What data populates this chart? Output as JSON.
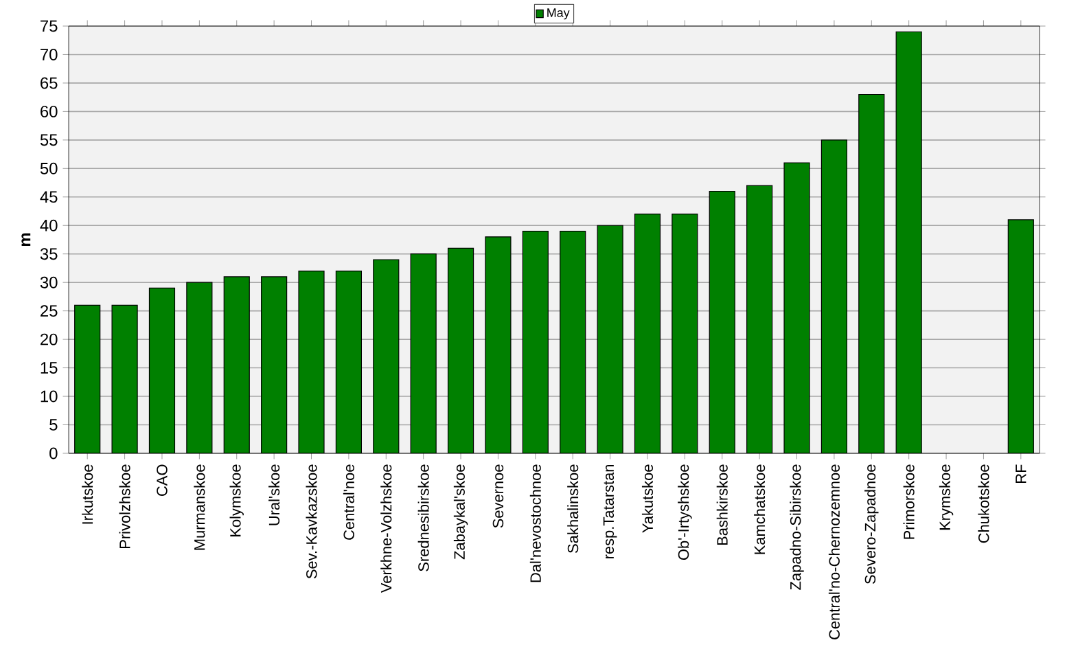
{
  "chart_data": {
    "type": "bar",
    "ylabel": "m",
    "categories": [
      "Irkutskoe",
      "Privolzhskoe",
      "CAO",
      "Murmanskoe",
      "Kolymskoe",
      "Ural'skoe",
      "Sev.-Kavkazskoe",
      "Central'noe",
      "Verkhne-Volzhskoe",
      "Srednesibirskoe",
      "Zabaykal'skoe",
      "Severnoe",
      "Dal'nevostochnoe",
      "Sakhalinskoe",
      "resp.Tatarstan",
      "Yakutskoe",
      "Ob'-Irtyshskoe",
      "Bashkirskoe",
      "Kamchatskoe",
      "Zapadno-Sibirskoe",
      "Central'no-Chernozemnoe",
      "Severo-Zapadnoe",
      "Primorskoe",
      "Krymskoe",
      "Chukotskoe",
      "RF"
    ],
    "series": [
      {
        "name": "May",
        "color": "#008000",
        "values": [
          26,
          26,
          29,
          30,
          31,
          31,
          32,
          32,
          34,
          35,
          36,
          38,
          39,
          39,
          40,
          42,
          42,
          46,
          47,
          51,
          55,
          63,
          74,
          null,
          null,
          41
        ]
      }
    ],
    "ylim": [
      0,
      75
    ],
    "yticks": [
      0,
      5,
      10,
      15,
      20,
      25,
      30,
      35,
      40,
      45,
      50,
      55,
      60,
      65,
      70,
      75
    ],
    "grid": "y",
    "legend": "top"
  }
}
